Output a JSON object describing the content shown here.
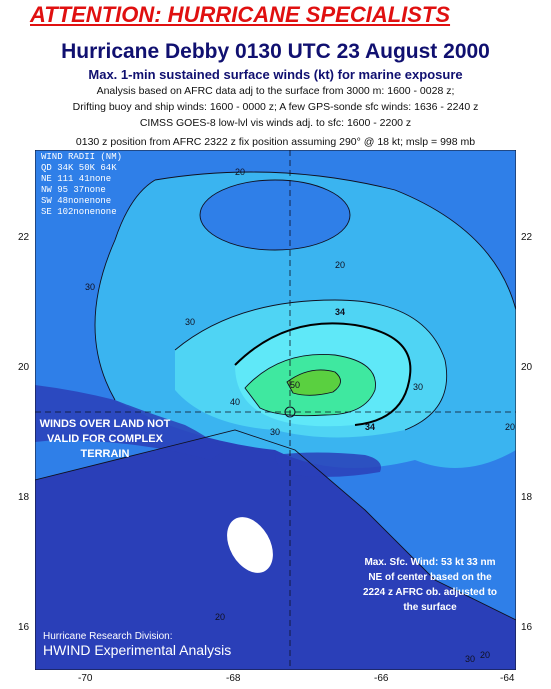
{
  "header": {
    "attention": "ATTENTION: HURRICANE SPECIALISTS",
    "title": "Hurricane Debby 0130 UTC 23 August 2000",
    "subtitle": "Max. 1-min sustained surface winds (kt) for marine exposure",
    "note_lines": [
      "Analysis based on AFRC data adj to the surface from 3000 m: 1600 - 0028 z;",
      "Drifting buoy and ship winds: 1600 - 0000 z; A few GPS-sonde sfc winds: 1636 - 2240 z",
      "CIMSS GOES-8 low-lvl vis winds adj. to sfc: 1600 - 2200 z"
    ],
    "position_note": "0130 z position from AFRC 2322 z fix position assuming 290° @ 18 kt; mslp = 998 mb"
  },
  "wind_radii": {
    "title": "WIND RADII (NM)",
    "rows": [
      "QD  34K  50K  64K",
      "NE  111   41none",
      "NW   95   37none",
      "SW   48nonenone",
      "SE  102nonenone"
    ]
  },
  "annotations": {
    "land_warning": [
      "WINDS OVER LAND NOT",
      "VALID FOR COMPLEX",
      "TERRAIN"
    ],
    "max_wind": [
      "Max. Sfc. Wind: 53 kt 33 nm",
      "NE of center based on the",
      "2224 z AFRC ob. adjusted to",
      "the surface"
    ],
    "credit_line1": "Hurricane Research Division:",
    "credit_line2": "HWIND Experimental Analysis"
  },
  "axes": {
    "lon_ticks": [
      "-70",
      "-68",
      "-66",
      "-64"
    ],
    "lat_ticks": [
      "22",
      "20",
      "18",
      "16"
    ]
  },
  "contour_labels": [
    "20",
    "20",
    "20",
    "20",
    "30",
    "30",
    "30",
    "30",
    "34",
    "34",
    "40",
    "50",
    "20",
    "30"
  ],
  "colors": {
    "c_lt10": "#2a3fb8",
    "c_10_20": "#2f7fe8",
    "c_20_30": "#3ab4f0",
    "c_30_34": "#4fd4f4",
    "c_34_40": "#5fe8f8",
    "c_40_50": "#3fe8a0",
    "c_50_plus": "#5ad040",
    "land": "#2a3fb8",
    "warning_text": "#e01010"
  }
}
